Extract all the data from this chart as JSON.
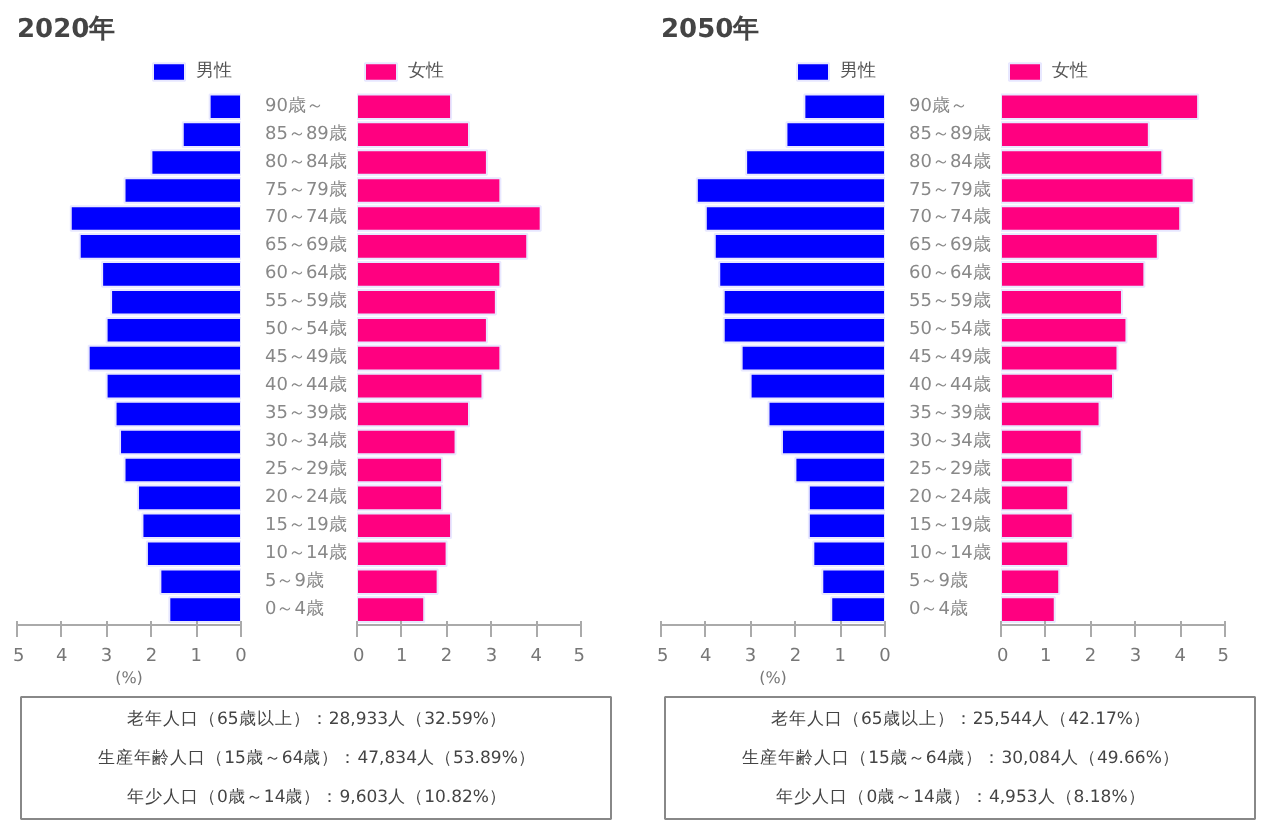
{
  "chart_data": [
    {
      "type": "bar",
      "orientation": "horizontal",
      "title": "2020年",
      "xlabel": "(%)",
      "legend": "top right",
      "grid": false,
      "categories": [
        "90歳～",
        "85～89歳",
        "80～84歳",
        "75～79歳",
        "70～74歳",
        "65～69歳",
        "60～64歳",
        "55～59歳",
        "50～54歳",
        "45～49歳",
        "40～44歳",
        "35～39歳",
        "30～34歳",
        "25～29歳",
        "20～24歳",
        "15～19歳",
        "10～14歳",
        "5～9歳",
        "0～4歳"
      ],
      "series": [
        {
          "name": "男性",
          "color": "#0000ff",
          "values": [
            0.7,
            1.3,
            2.0,
            2.6,
            3.8,
            3.6,
            3.1,
            2.9,
            3.0,
            3.4,
            3.0,
            2.8,
            2.7,
            2.6,
            2.3,
            2.2,
            2.1,
            1.8,
            1.6
          ]
        }
      ],
      "xlim": [
        5,
        0
      ],
      "xticks": [
        5,
        4,
        3,
        2,
        1,
        0
      ],
      "annotations": [
        "老年人口（65歳以上）：28,933人（32.59%）",
        "生産年齢人口（15歳～64歳）：47,834人（53.89%）",
        "年少人口（0歳～14歳）：9,603人（10.82%）"
      ]
    },
    {
      "type": "bar",
      "orientation": "horizontal",
      "legend": "top left",
      "grid": false,
      "tick_labels": "x",
      "categories": [
        null,
        null,
        null,
        null,
        null,
        null,
        null,
        null,
        null,
        null,
        null,
        null,
        null,
        null,
        null,
        null,
        null,
        null,
        null
      ],
      "series": [
        {
          "name": "女性",
          "color": "#ff0080",
          "values": [
            2.1,
            2.5,
            2.9,
            3.2,
            4.1,
            3.8,
            3.2,
            3.1,
            2.9,
            3.2,
            2.8,
            2.5,
            2.2,
            1.9,
            1.9,
            2.1,
            2.0,
            1.8,
            1.5
          ]
        }
      ],
      "xlim": [
        0,
        5
      ],
      "xticks": [
        0,
        1,
        2,
        3,
        4,
        5
      ]
    },
    {
      "type": "bar",
      "orientation": "horizontal",
      "title": "2050年",
      "xlabel": "(%)",
      "legend": "top right",
      "grid": false,
      "categories": [
        "90歳～",
        "85～89歳",
        "80～84歳",
        "75～79歳",
        "70～74歳",
        "65～69歳",
        "60～64歳",
        "55～59歳",
        "50～54歳",
        "45～49歳",
        "40～44歳",
        "35～39歳",
        "30～34歳",
        "25～29歳",
        "20～24歳",
        "15～19歳",
        "10～14歳",
        "5～9歳",
        "0～4歳"
      ],
      "series": [
        {
          "name": "男性",
          "color": "#0000ff",
          "values": [
            1.8,
            2.2,
            3.1,
            4.2,
            4.0,
            3.8,
            3.7,
            3.6,
            3.6,
            3.2,
            3.0,
            2.6,
            2.3,
            2.0,
            1.7,
            1.7,
            1.6,
            1.4,
            1.2
          ]
        }
      ],
      "xlim": [
        5,
        0
      ],
      "xticks": [
        5,
        4,
        3,
        2,
        1,
        0
      ],
      "annotations": [
        "老年人口（65歳以上）：25,544人（42.17%）",
        "生産年齢人口（15歳～64歳）：30,084人（49.66%）",
        "年少人口（0歳～14歳）：4,953人（8.18%）"
      ]
    },
    {
      "type": "bar",
      "orientation": "horizontal",
      "legend": "top left",
      "grid": false,
      "tick_labels": "x",
      "categories": [
        null,
        null,
        null,
        null,
        null,
        null,
        null,
        null,
        null,
        null,
        null,
        null,
        null,
        null,
        null,
        null,
        null,
        null,
        null
      ],
      "series": [
        {
          "name": "女性",
          "color": "#ff0080",
          "values": [
            4.4,
            3.3,
            3.6,
            4.3,
            4.0,
            3.5,
            3.2,
            2.7,
            2.8,
            2.6,
            2.5,
            2.2,
            1.8,
            1.6,
            1.5,
            1.6,
            1.5,
            1.3,
            1.2
          ]
        }
      ],
      "xlim": [
        0,
        5
      ],
      "xticks": [
        0,
        1,
        2,
        3,
        4,
        5
      ]
    }
  ]
}
